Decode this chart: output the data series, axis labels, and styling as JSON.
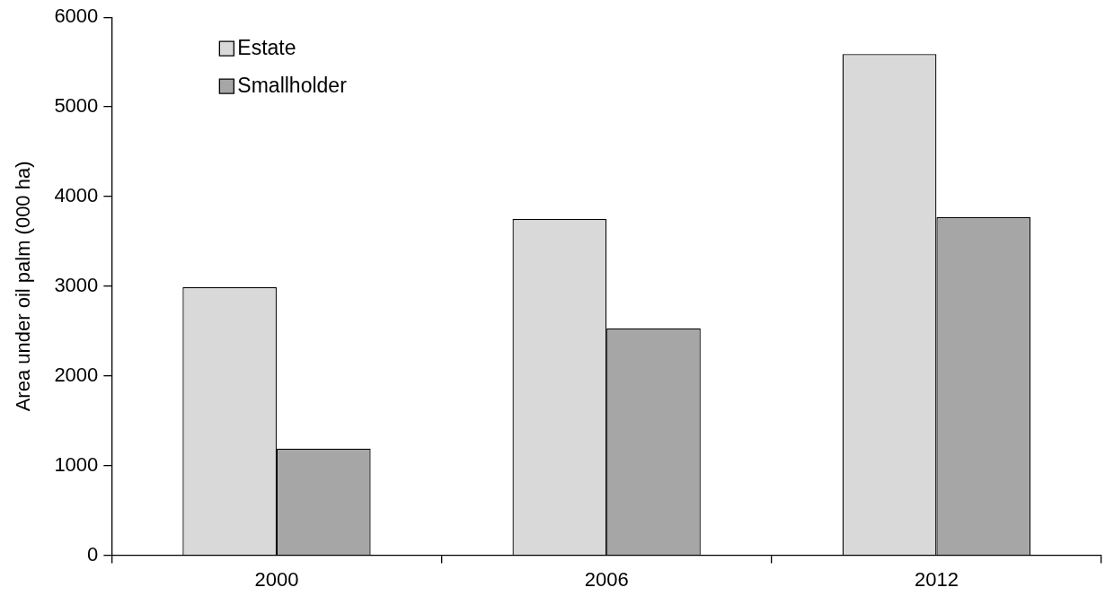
{
  "chart_data": {
    "type": "bar",
    "ylabel": "Area under oil palm (000 ha)",
    "categories": [
      "2000",
      "2006",
      "2012"
    ],
    "series": [
      {
        "name": "Estate",
        "color": "#d9d9d9",
        "values": [
          2990,
          3750,
          5590
        ]
      },
      {
        "name": "Smallholder",
        "color": "#a6a6a6",
        "values": [
          1190,
          2530,
          3770
        ]
      }
    ],
    "ylim": [
      0,
      6000
    ],
    "yticks": [
      0,
      1000,
      2000,
      3000,
      4000,
      5000,
      6000
    ],
    "grid": false,
    "legend": "top left"
  }
}
